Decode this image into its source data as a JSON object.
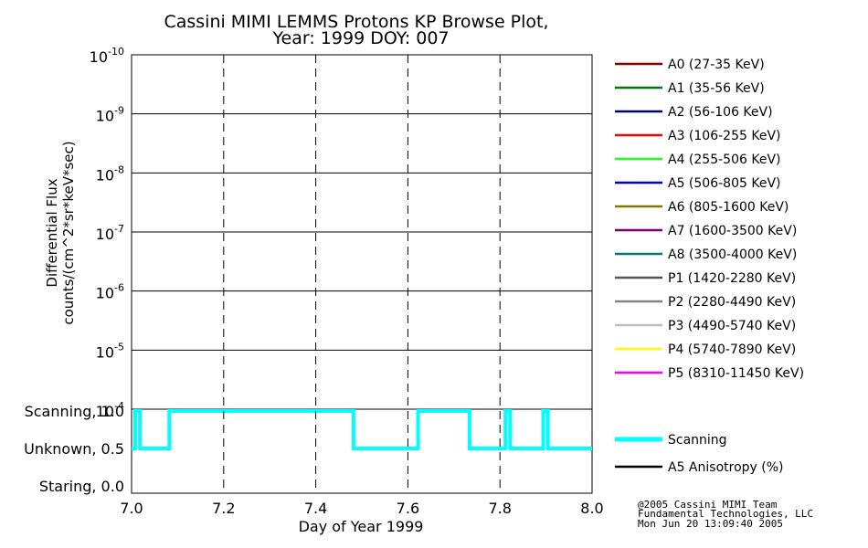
{
  "chart_data": {
    "type": "line",
    "title": "Cassini MIMI LEMMS Protons KP Browse Plot,",
    "subtitle": "Year: 1999 DOY: 007",
    "xlabel": "Day of Year 1999",
    "xlim": [
      7.0,
      8.0
    ],
    "x_ticks": [
      "7.0",
      "7.2",
      "7.4",
      "7.6",
      "7.8",
      "8.0"
    ],
    "x_tick_values": [
      7.0,
      7.2,
      7.4,
      7.6,
      7.8,
      8.0
    ],
    "top_panel": {
      "ylabel_line1": "Differential Flux",
      "ylabel_line2": "counts/(cm^2*sr*keV*sec)",
      "y_tick_exponents": [
        "-10",
        "-9",
        "-8",
        "-7",
        "-6",
        "-5",
        "-4"
      ],
      "y_tick_base": "10"
    },
    "bottom_panel": {
      "y_ticks": [
        "Scanning, 1.0",
        "Unknown, 0.5",
        "Staring, 0.0"
      ],
      "y_tick_values": [
        1.0,
        0.5,
        0.0
      ],
      "ylim": [
        0.0,
        1.0
      ]
    },
    "legend_channels": [
      {
        "label": "A0 (27-35 KeV)",
        "color": "#8b0000"
      },
      {
        "label": "A1 (35-56 KeV)",
        "color": "#007800"
      },
      {
        "label": "A2 (56-106 KeV)",
        "color": "#00006e"
      },
      {
        "label": "A3 (106-255 KeV)",
        "color": "#ff0000"
      },
      {
        "label": "A4 (255-506 KeV)",
        "color": "#22ff22"
      },
      {
        "label": "A5 (506-805 KeV)",
        "color": "#0000c8"
      },
      {
        "label": "A6 (805-1600 KeV)",
        "color": "#827800"
      },
      {
        "label": "A7 (1600-3500 KeV)",
        "color": "#780078"
      },
      {
        "label": "A8 (3500-4000 KeV)",
        "color": "#007878"
      },
      {
        "label": "P1 (1420-2280 KeV)",
        "color": "#555555"
      },
      {
        "label": "P2 (2280-4490 KeV)",
        "color": "#828282"
      },
      {
        "label": "P3 (4490-5740 KeV)",
        "color": "#bebebe"
      },
      {
        "label": "P4 (5740-7890 KeV)",
        "color": "#ffff00"
      },
      {
        "label": "P5 (8310-11450 KeV)",
        "color": "#ff00ff"
      }
    ],
    "series": [
      {
        "name": "Scanning",
        "color": "#00ffff",
        "x": [
          7.0,
          7.008,
          7.008,
          7.018,
          7.018,
          7.082,
          7.082,
          7.482,
          7.482,
          7.622,
          7.622,
          7.734,
          7.734,
          7.812,
          7.812,
          7.822,
          7.822,
          7.894,
          7.894,
          7.904,
          7.904,
          8.0
        ],
        "values": [
          0.5,
          0.5,
          1.0,
          1.0,
          0.5,
          0.5,
          1.0,
          1.0,
          0.5,
          0.5,
          1.0,
          1.0,
          0.5,
          0.5,
          1.0,
          1.0,
          0.5,
          0.5,
          1.0,
          1.0,
          0.5,
          0.5
        ]
      },
      {
        "name": "A5 Anisotropy (%)",
        "color": "#000000",
        "x": [],
        "values": []
      }
    ]
  },
  "footer": {
    "line1": "@2005 Cassini MIMI Team",
    "line2": "Fundamental Technologies, LLC",
    "line3": "Mon Jun 20 13:09:40 2005"
  }
}
